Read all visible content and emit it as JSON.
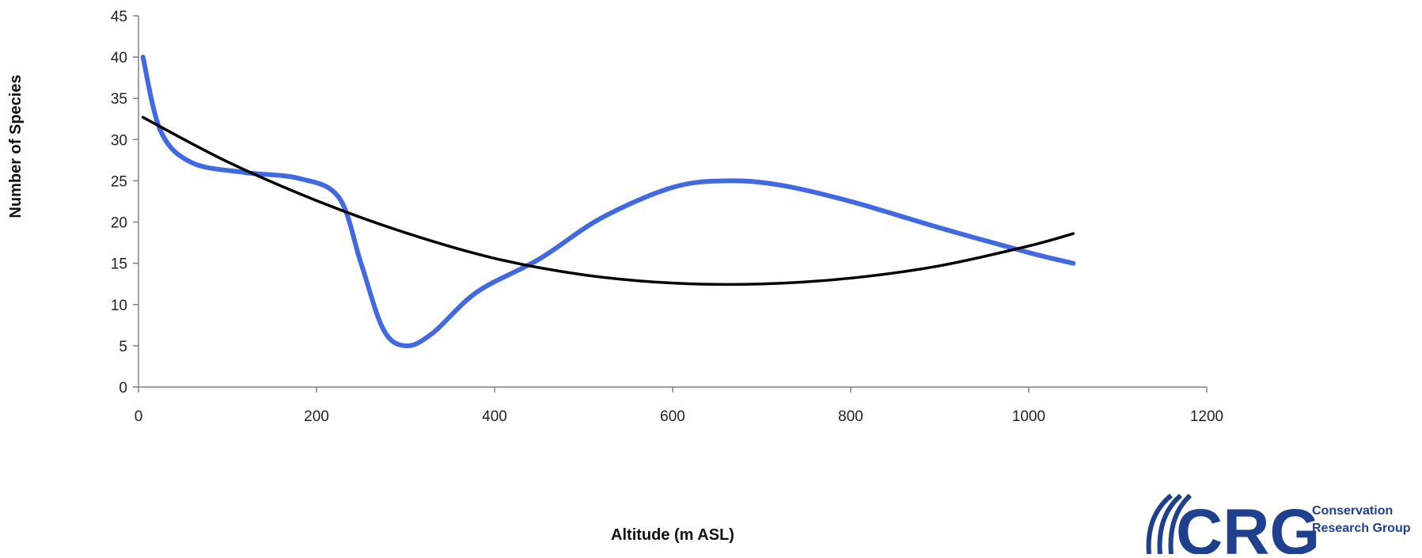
{
  "chart_data": {
    "type": "line",
    "title": "",
    "xlabel": "Altitude (m ASL)",
    "ylabel": "Number of Species",
    "xlim": [
      0,
      1200
    ],
    "ylim": [
      0,
      45
    ],
    "x_ticks": [
      0,
      200,
      400,
      600,
      800,
      1000,
      1200
    ],
    "y_ticks": [
      0,
      5,
      10,
      15,
      20,
      25,
      30,
      35,
      40,
      45
    ],
    "grid": false,
    "legend": "none",
    "series": [
      {
        "color": "#4169e1",
        "smooth": true,
        "x": [
          5,
          25,
          60,
          120,
          180,
          225,
          250,
          275,
          300,
          330,
          380,
          450,
          520,
          600,
          660,
          720,
          800,
          900,
          1000,
          1050
        ],
        "y": [
          40,
          31,
          27.2,
          26,
          25.3,
          23,
          15,
          7,
          5,
          6.5,
          11.5,
          15.5,
          20.5,
          24.2,
          25,
          24.5,
          22.5,
          19.3,
          16.3,
          15
        ]
      },
      {
        "color": "#000000",
        "smooth": true,
        "x": [
          5,
          100,
          200,
          300,
          400,
          500,
          600,
          700,
          800,
          900,
          1000,
          1050
        ],
        "y": [
          32.7,
          27.3,
          22.6,
          18.7,
          15.6,
          13.6,
          12.6,
          12.5,
          13.2,
          14.7,
          17.1,
          18.6
        ]
      }
    ]
  },
  "logo": {
    "letters": "CRG",
    "text_line1": "Conservation",
    "text_line2": "Research Group",
    "color": "#1f3f8f"
  }
}
